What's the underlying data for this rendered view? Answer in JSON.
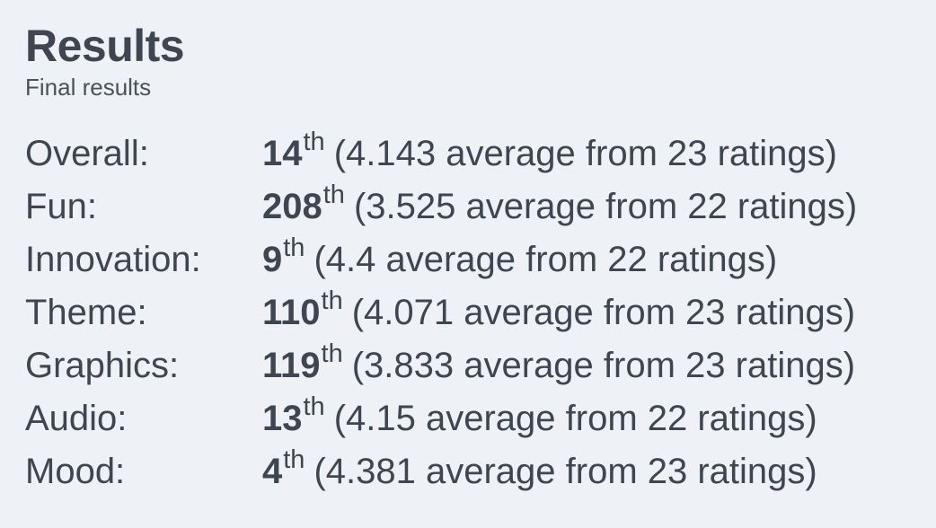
{
  "header": {
    "title": "Results",
    "subtitle": "Final results"
  },
  "results": [
    {
      "label": "Overall:",
      "rank": "14",
      "suffix": "th",
      "detail": "(4.143 average from 23 ratings)"
    },
    {
      "label": "Fun:",
      "rank": "208",
      "suffix": "th",
      "detail": "(3.525 average from 22 ratings)"
    },
    {
      "label": "Innovation:",
      "rank": "9",
      "suffix": "th",
      "detail": "(4.4 average from 22 ratings)"
    },
    {
      "label": "Theme:",
      "rank": "110",
      "suffix": "th",
      "detail": "(4.071 average from 23 ratings)"
    },
    {
      "label": "Graphics:",
      "rank": "119",
      "suffix": "th",
      "detail": "(3.833 average from 23 ratings)"
    },
    {
      "label": "Audio:",
      "rank": "13",
      "suffix": "th",
      "detail": "(4.15 average from 22 ratings)"
    },
    {
      "label": "Mood:",
      "rank": "4",
      "suffix": "th",
      "detail": "(4.381 average from 23 ratings)"
    }
  ]
}
